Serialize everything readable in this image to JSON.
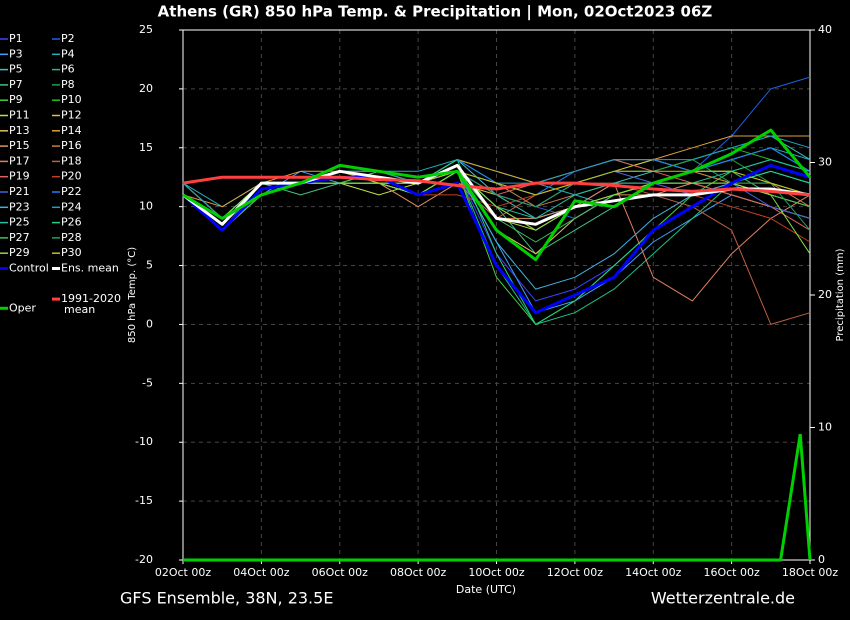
{
  "chart_data": {
    "type": "line",
    "title": "Athens  (GR)  850 hPa Temp. & Precipitation | Mon, 02Oct2023 06Z",
    "xlabel": "Date (UTC)",
    "ylabel": "850 hPa Temp. (°C)",
    "y2label": "Precipitation (mm)",
    "footer_left": "GFS Ensemble, 38N, 23.5E",
    "footer_right": "Wetterzentrale.de",
    "grid": true,
    "xlim": [
      0,
      16
    ],
    "xticks": [
      {
        "value": 0,
        "label": "02Oct 00z"
      },
      {
        "value": 2,
        "label": "04Oct 00z"
      },
      {
        "value": 4,
        "label": "06Oct 00z"
      },
      {
        "value": 6,
        "label": "08Oct 00z"
      },
      {
        "value": 8,
        "label": "10Oct 00z"
      },
      {
        "value": 10,
        "label": "12Oct 00z"
      },
      {
        "value": 12,
        "label": "14Oct 00z"
      },
      {
        "value": 14,
        "label": "16Oct 00z"
      },
      {
        "value": 16,
        "label": "18Oct 00z"
      }
    ],
    "ylim": [
      -20,
      25
    ],
    "yticks": [
      -20,
      -15,
      -10,
      -5,
      0,
      5,
      10,
      15,
      20,
      25
    ],
    "y2lim": [
      0,
      40
    ],
    "y2ticks": [
      0,
      10,
      20,
      30,
      40
    ],
    "x": [
      0,
      1,
      2,
      3,
      4,
      5,
      6,
      7,
      8,
      9,
      10,
      11,
      12,
      13,
      14,
      15,
      16
    ],
    "series": [
      {
        "name": "P1",
        "color": "#4040ff",
        "values": [
          11,
          9,
          12,
          12,
          13,
          12,
          11,
          13,
          6,
          2,
          3,
          5,
          8,
          10,
          12,
          13,
          12
        ]
      },
      {
        "name": "P2",
        "color": "#2060e0",
        "values": [
          11,
          8,
          11,
          12,
          12,
          13,
          12,
          14,
          12,
          10,
          9,
          11,
          12,
          13,
          16,
          20,
          21
        ]
      },
      {
        "name": "P3",
        "color": "#40a0ff",
        "values": [
          11,
          9,
          11,
          13,
          12,
          12,
          12,
          13,
          7,
          1,
          2,
          4,
          7,
          9,
          11,
          10,
          9
        ]
      },
      {
        "name": "P4",
        "color": "#20b0c0",
        "values": [
          12,
          10,
          12,
          12,
          13,
          13,
          13,
          14,
          13,
          12,
          11,
          10,
          12,
          13,
          14,
          15,
          14
        ]
      },
      {
        "name": "P5",
        "color": "#40c0c0",
        "values": [
          11,
          9,
          12,
          12,
          12,
          13,
          12,
          14,
          11,
          9,
          10,
          12,
          13,
          14,
          15,
          16,
          14
        ]
      },
      {
        "name": "P6",
        "color": "#20c080",
        "values": [
          11,
          8,
          11,
          12,
          13,
          12,
          12,
          13,
          5,
          0,
          1,
          3,
          6,
          9,
          12,
          13,
          12
        ]
      },
      {
        "name": "P7",
        "color": "#40c080",
        "values": [
          11,
          9,
          12,
          11,
          12,
          12,
          11,
          13,
          10,
          6,
          8,
          10,
          12,
          13,
          14,
          15,
          13
        ]
      },
      {
        "name": "P8",
        "color": "#20a040",
        "values": [
          12,
          9,
          11,
          12,
          13,
          12,
          12,
          14,
          12,
          11,
          12,
          13,
          14,
          13,
          14,
          12,
          11
        ]
      },
      {
        "name": "P9",
        "color": "#40d040",
        "values": [
          11,
          8,
          12,
          12,
          12,
          13,
          12,
          13,
          4,
          0,
          2,
          5,
          8,
          11,
          13,
          14,
          13
        ]
      },
      {
        "name": "P10",
        "color": "#20c020",
        "values": [
          11,
          9,
          11,
          12,
          13,
          12,
          12,
          14,
          13,
          12,
          13,
          14,
          13,
          14,
          15,
          14,
          13
        ]
      },
      {
        "name": "P11",
        "color": "#c0e040",
        "values": [
          11,
          9,
          12,
          12,
          12,
          11,
          12,
          13,
          9,
          8,
          10,
          11,
          12,
          12,
          11,
          10,
          9
        ]
      },
      {
        "name": "P12",
        "color": "#e0c040",
        "values": [
          12,
          9,
          11,
          12,
          13,
          12,
          11,
          12,
          11,
          10,
          12,
          13,
          14,
          13,
          13,
          12,
          11
        ]
      },
      {
        "name": "P13",
        "color": "#e0c060",
        "values": [
          11,
          9,
          12,
          12,
          12,
          12,
          11,
          13,
          8,
          6,
          9,
          11,
          12,
          13,
          12,
          11,
          10
        ]
      },
      {
        "name": "P14",
        "color": "#e0a040",
        "values": [
          11,
          10,
          12,
          13,
          13,
          12,
          12,
          14,
          13,
          12,
          13,
          14,
          14,
          15,
          16,
          16,
          16
        ]
      },
      {
        "name": "P15",
        "color": "#e09060",
        "values": [
          11,
          8,
          11,
          12,
          12,
          12,
          10,
          12,
          9,
          9,
          10,
          11,
          11,
          12,
          12,
          11,
          10
        ]
      },
      {
        "name": "P16",
        "color": "#c08040",
        "values": [
          11,
          9,
          12,
          12,
          13,
          13,
          12,
          13,
          12,
          10,
          11,
          12,
          12,
          13,
          12,
          12,
          10
        ]
      },
      {
        "name": "P17",
        "color": "#e08060",
        "values": [
          12,
          9,
          11,
          12,
          12,
          12,
          12,
          13,
          10,
          8,
          10,
          12,
          4,
          2,
          6,
          9,
          11
        ]
      },
      {
        "name": "P18",
        "color": "#c06040",
        "values": [
          11,
          9,
          12,
          12,
          13,
          12,
          11,
          12,
          9,
          11,
          12,
          12,
          11,
          10,
          8,
          0,
          1
        ]
      },
      {
        "name": "P19",
        "color": "#e06060",
        "values": [
          11,
          9,
          11,
          12,
          12,
          12,
          12,
          13,
          11,
          12,
          13,
          14,
          13,
          12,
          11,
          10,
          8
        ]
      },
      {
        "name": "P20",
        "color": "#c04020",
        "values": [
          11,
          8,
          12,
          12,
          13,
          12,
          11,
          11,
          10,
          11,
          12,
          13,
          12,
          11,
          10,
          9,
          7
        ]
      },
      {
        "name": "P21",
        "color": "#4060e0",
        "values": [
          11,
          9,
          12,
          12,
          13,
          12,
          12,
          13,
          11,
          10,
          12,
          13,
          12,
          11,
          12,
          10,
          9
        ]
      },
      {
        "name": "P22",
        "color": "#2080ff",
        "values": [
          11,
          9,
          11,
          12,
          12,
          12,
          12,
          14,
          12,
          11,
          13,
          14,
          14,
          13,
          14,
          15,
          13
        ]
      },
      {
        "name": "P23",
        "color": "#40b0e0",
        "values": [
          11,
          8,
          12,
          12,
          12,
          12,
          11,
          13,
          7,
          3,
          4,
          6,
          9,
          11,
          12,
          13,
          12
        ]
      },
      {
        "name": "P24",
        "color": "#20a0c0",
        "values": [
          12,
          9,
          11,
          12,
          13,
          13,
          12,
          13,
          12,
          12,
          13,
          14,
          14,
          14,
          15,
          16,
          15
        ]
      },
      {
        "name": "P25",
        "color": "#20c0a0",
        "values": [
          11,
          9,
          12,
          12,
          12,
          12,
          11,
          13,
          10,
          9,
          11,
          12,
          12,
          12,
          13,
          14,
          13
        ]
      },
      {
        "name": "P26",
        "color": "#20d080",
        "values": [
          11,
          9,
          12,
          12,
          13,
          12,
          12,
          14,
          6,
          0,
          2,
          5,
          8,
          10,
          12,
          13,
          12
        ]
      },
      {
        "name": "P27",
        "color": "#40c060",
        "values": [
          11,
          8,
          11,
          12,
          12,
          12,
          11,
          13,
          9,
          7,
          9,
          11,
          12,
          13,
          13,
          11,
          10
        ]
      },
      {
        "name": "P28",
        "color": "#20a060",
        "values": [
          11,
          9,
          12,
          12,
          13,
          12,
          12,
          13,
          11,
          10,
          12,
          13,
          13,
          14,
          12,
          12,
          8
        ]
      },
      {
        "name": "P29",
        "color": "#80e040",
        "values": [
          11,
          9,
          12,
          12,
          12,
          12,
          11,
          13,
          10,
          8,
          10,
          11,
          12,
          12,
          12,
          11,
          6
        ]
      },
      {
        "name": "P30",
        "color": "#c0c020",
        "values": [
          11,
          9,
          11,
          12,
          13,
          12,
          12,
          13,
          12,
          11,
          12,
          13,
          13,
          13,
          13,
          12,
          11
        ]
      },
      {
        "name": "Control",
        "color": "#0000ff",
        "width": 3,
        "values": [
          11,
          8,
          11.5,
          12,
          12.5,
          12.5,
          11,
          12,
          5,
          1,
          2.5,
          4,
          8,
          10,
          12,
          13.5,
          12.5
        ]
      },
      {
        "name": "Ens. mean",
        "color": "#ffffff",
        "width": 3,
        "values": [
          11,
          8.5,
          12,
          12,
          13,
          12.5,
          12,
          13.5,
          9,
          8.5,
          10,
          10.5,
          11,
          11,
          11.5,
          11.5,
          11
        ]
      },
      {
        "name": "1991-2020 mean",
        "color": "#ff4040",
        "width": 3,
        "values": [
          12,
          12.5,
          12.5,
          12.5,
          12.5,
          12.3,
          12.2,
          11.8,
          11.5,
          12,
          12,
          11.8,
          11.5,
          11.3,
          11.5,
          11.3,
          11
        ]
      },
      {
        "name": "Oper",
        "color": "#00d000",
        "width": 3,
        "values": [
          11,
          9,
          11,
          12,
          13.5,
          13,
          12.5,
          13,
          8,
          5.5,
          10.5,
          10,
          12,
          13,
          14.5,
          16.5,
          12.5
        ]
      }
    ],
    "precipitation": [
      {
        "color": "#00d000",
        "axis": "y2",
        "x": [
          0,
          15.25,
          15.75,
          16
        ],
        "values": [
          0,
          0,
          9.5,
          0
        ]
      }
    ]
  }
}
